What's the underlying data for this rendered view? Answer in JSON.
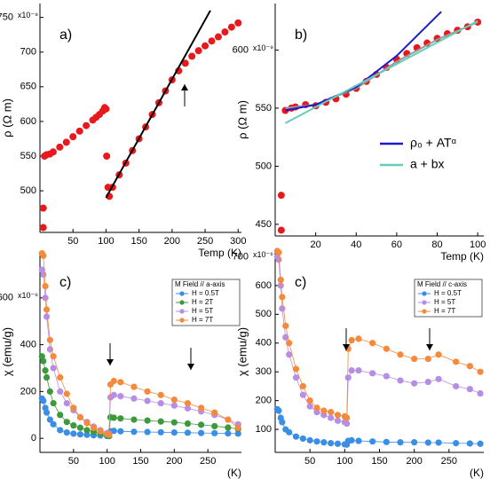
{
  "chart_data": [
    {
      "type": "scatter",
      "panel_label": "a)",
      "xlabel": "Temp (K)",
      "ylabel": "ρ (Ω m)",
      "y_exponent": "x10⁻⁹",
      "xlim": [
        0,
        305
      ],
      "ylim": [
        440,
        770
      ],
      "xticks": [
        50,
        100,
        150,
        200,
        250,
        300
      ],
      "yticks": [
        500,
        550,
        600,
        650,
        700,
        750
      ],
      "series": [
        {
          "color": "#e8191c",
          "style": "markers",
          "x": [
            5,
            5,
            7,
            10,
            15,
            20,
            30,
            40,
            50,
            60,
            70,
            80,
            85,
            90,
            95,
            98,
            100,
            101,
            103,
            105,
            110,
            120,
            130,
            140,
            150,
            160,
            170,
            180,
            190,
            200,
            210,
            220,
            230,
            240,
            250,
            260,
            270,
            280,
            290,
            300
          ],
          "values": [
            447,
            475,
            550,
            552,
            553,
            556,
            563,
            570,
            578,
            586,
            594,
            602,
            606,
            610,
            615,
            620,
            618,
            550,
            505,
            492,
            505,
            523,
            540,
            558,
            575,
            592,
            610,
            627,
            644,
            660,
            673,
            684,
            694,
            702,
            709,
            716,
            722,
            729,
            736,
            742
          ]
        },
        {
          "color": "#000000",
          "style": "line",
          "x": [
            100,
            258
          ],
          "values": [
            490,
            760
          ]
        }
      ]
    },
    {
      "type": "scatter",
      "panel_label": "b)",
      "xlabel": "Temp (K)",
      "ylabel": "ρ (Ω m)",
      "y_exponent": "x10⁻⁹",
      "xlim": [
        0,
        103
      ],
      "ylim": [
        440,
        640
      ],
      "xticks": [
        20,
        40,
        60,
        80,
        100
      ],
      "yticks": [
        450,
        500,
        550,
        600
      ],
      "series": [
        {
          "color": "#e8191c",
          "style": "markers",
          "x": [
            3,
            3,
            5,
            8,
            10,
            15,
            20,
            25,
            30,
            35,
            40,
            45,
            50,
            55,
            60,
            65,
            70,
            75,
            80,
            85,
            90,
            95,
            100
          ],
          "values": [
            445,
            475,
            548,
            550,
            551,
            553,
            552,
            555,
            558,
            562,
            567,
            573,
            579,
            585,
            592,
            597,
            602,
            606,
            610,
            614,
            617,
            620,
            624
          ]
        },
        {
          "color": "#999999",
          "style": "line",
          "x": [
            5,
            20,
            40,
            60,
            80,
            100
          ],
          "values": [
            550,
            553,
            567,
            590,
            609,
            624
          ]
        },
        {
          "name": "ρ₀ + ATᵅ",
          "color": "#1a1ad0",
          "style": "line",
          "x": [
            5,
            20,
            40,
            60,
            82
          ],
          "values": [
            548,
            553,
            568,
            595,
            633
          ]
        },
        {
          "name": "a + bx",
          "color": "#66ccbb",
          "style": "line",
          "x": [
            5,
            100
          ],
          "values": [
            537,
            625
          ]
        }
      ]
    },
    {
      "type": "scatter",
      "panel_label": "c)",
      "xlabel": "(K)",
      "ylabel": "χ (emu/g)",
      "y_exponent": "x10⁻⁶",
      "legend_title": "M Field // a-axis",
      "xlim": [
        0,
        300
      ],
      "ylim": [
        -60,
        800
      ],
      "xticks": [
        50,
        100,
        150,
        200,
        250
      ],
      "yticks": [
        0,
        200,
        400,
        600
      ],
      "series": [
        {
          "name": "H = 0.5T",
          "color": "#3a8ee6",
          "style": "markers+line",
          "x": [
            3,
            5,
            8,
            10,
            15,
            20,
            30,
            40,
            50,
            60,
            70,
            80,
            90,
            100,
            103,
            105,
            110,
            120,
            140,
            160,
            180,
            200,
            220,
            240,
            260,
            280,
            295
          ],
          "values": [
            170,
            160,
            130,
            110,
            80,
            60,
            35,
            25,
            20,
            17,
            15,
            13,
            12,
            10,
            10,
            30,
            32,
            30,
            28,
            27,
            26,
            25,
            24,
            23,
            22,
            21,
            20
          ]
        },
        {
          "name": "H = 2T",
          "color": "#3c9a3c",
          "style": "markers+line",
          "x": [
            3,
            5,
            8,
            10,
            15,
            20,
            30,
            40,
            50,
            60,
            70,
            80,
            90,
            100,
            103,
            105,
            110,
            120,
            140,
            160,
            180,
            200,
            220,
            240,
            260,
            280,
            295
          ],
          "values": [
            350,
            330,
            290,
            260,
            200,
            150,
            100,
            70,
            55,
            45,
            35,
            28,
            20,
            12,
            10,
            90,
            88,
            85,
            80,
            76,
            72,
            68,
            63,
            58,
            52,
            46,
            40
          ]
        },
        {
          "name": "H = 5T",
          "color": "#b68ee6",
          "style": "markers+line",
          "x": [
            3,
            5,
            8,
            10,
            15,
            20,
            30,
            40,
            50,
            60,
            70,
            80,
            90,
            100,
            103,
            105,
            110,
            120,
            140,
            160,
            180,
            200,
            220,
            240,
            260,
            280,
            295
          ],
          "values": [
            720,
            700,
            600,
            520,
            380,
            300,
            200,
            150,
            120,
            90,
            70,
            50,
            35,
            22,
            20,
            175,
            185,
            180,
            170,
            160,
            150,
            140,
            128,
            115,
            100,
            80,
            60
          ]
        },
        {
          "name": "H = 7T",
          "color": "#f5893c",
          "style": "markers+line",
          "x": [
            3,
            5,
            8,
            10,
            15,
            20,
            30,
            40,
            50,
            60,
            70,
            80,
            90,
            100,
            103,
            105,
            110,
            120,
            140,
            160,
            180,
            200,
            220,
            240,
            260,
            280,
            295
          ],
          "values": [
            790,
            780,
            650,
            550,
            420,
            350,
            260,
            190,
            130,
            90,
            65,
            45,
            30,
            18,
            15,
            230,
            245,
            240,
            220,
            200,
            185,
            165,
            150,
            130,
            110,
            80,
            45
          ]
        }
      ]
    },
    {
      "type": "scatter",
      "panel_label": "c)",
      "xlabel": "(K)",
      "ylabel": "χ (emu/g)",
      "y_exponent": "x10⁻⁶",
      "legend_title": "M Field // c-axis",
      "xlim": [
        0,
        300
      ],
      "ylim": [
        20,
        720
      ],
      "xticks": [
        50,
        100,
        150,
        200,
        250
      ],
      "yticks": [
        100,
        200,
        300,
        400,
        500,
        600,
        700
      ],
      "series": [
        {
          "name": "H = 0.5T",
          "color": "#3a8ee6",
          "style": "markers+line",
          "x": [
            3,
            5,
            8,
            10,
            15,
            20,
            30,
            40,
            50,
            60,
            70,
            80,
            90,
            100,
            103,
            105,
            110,
            120,
            140,
            160,
            180,
            200,
            220,
            235,
            260,
            280,
            295
          ],
          "values": [
            170,
            165,
            140,
            125,
            100,
            90,
            75,
            68,
            62,
            58,
            55,
            52,
            50,
            48,
            47,
            60,
            62,
            60,
            58,
            56,
            55,
            55,
            54,
            54,
            52,
            51,
            50
          ]
        },
        {
          "name": "H = 5T",
          "color": "#b68ee6",
          "style": "markers+line",
          "x": [
            3,
            5,
            8,
            10,
            15,
            20,
            30,
            40,
            50,
            60,
            70,
            80,
            90,
            100,
            103,
            105,
            110,
            120,
            140,
            160,
            180,
            200,
            220,
            235,
            260,
            280,
            295
          ],
          "values": [
            700,
            690,
            600,
            520,
            420,
            360,
            280,
            220,
            180,
            160,
            150,
            140,
            130,
            125,
            120,
            280,
            305,
            305,
            295,
            285,
            270,
            260,
            265,
            275,
            250,
            240,
            225
          ]
        },
        {
          "name": "H = 7T",
          "color": "#f5893c",
          "style": "markers+line",
          "x": [
            3,
            5,
            8,
            10,
            15,
            20,
            30,
            40,
            50,
            60,
            70,
            80,
            90,
            100,
            103,
            105,
            110,
            120,
            140,
            160,
            180,
            200,
            220,
            235,
            260,
            280,
            295
          ],
          "values": [
            720,
            715,
            620,
            560,
            460,
            400,
            310,
            250,
            200,
            175,
            165,
            160,
            150,
            145,
            140,
            380,
            410,
            415,
            400,
            380,
            360,
            345,
            345,
            360,
            335,
            320,
            300
          ]
        }
      ]
    }
  ]
}
